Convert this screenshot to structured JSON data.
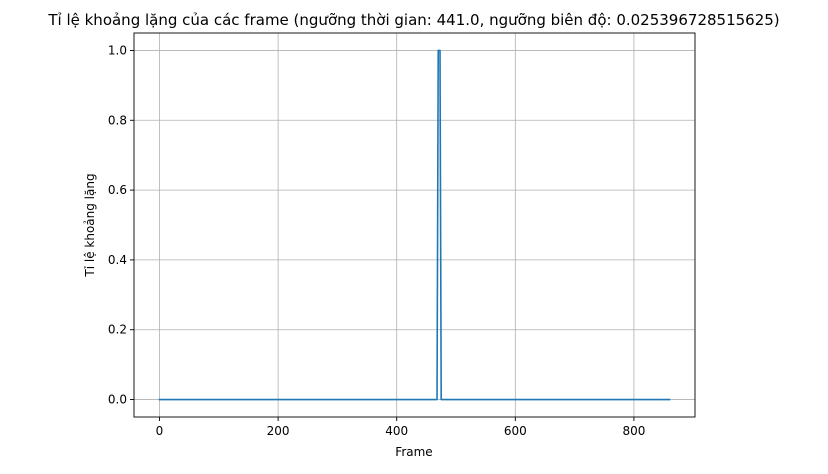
{
  "chart_data": {
    "type": "line",
    "title": "Tỉ lệ khoảng lặng của các frame (ngưỡng thời gian: 441.0, ngưỡng biên độ: 0.025396728515625)",
    "xlabel": "Frame",
    "ylabel": "Tỉ lệ khoảng lặng",
    "xlim": [
      -43,
      903
    ],
    "ylim": [
      -0.05,
      1.05
    ],
    "xticks": [
      0,
      200,
      400,
      600,
      800
    ],
    "xtick_labels": [
      "0",
      "200",
      "400",
      "600",
      "800"
    ],
    "yticks": [
      0.0,
      0.2,
      0.4,
      0.6,
      0.8,
      1.0
    ],
    "ytick_labels": [
      "0.0",
      "0.2",
      "0.4",
      "0.6",
      "0.8",
      "1.0"
    ],
    "grid": true,
    "legend": "none",
    "series": [
      {
        "color": "#1f77b4",
        "x": [
          0,
          468,
          470,
          473,
          475,
          860
        ],
        "y": [
          0.0,
          0.0,
          1.0,
          1.0,
          0.0,
          0.0
        ]
      }
    ]
  }
}
